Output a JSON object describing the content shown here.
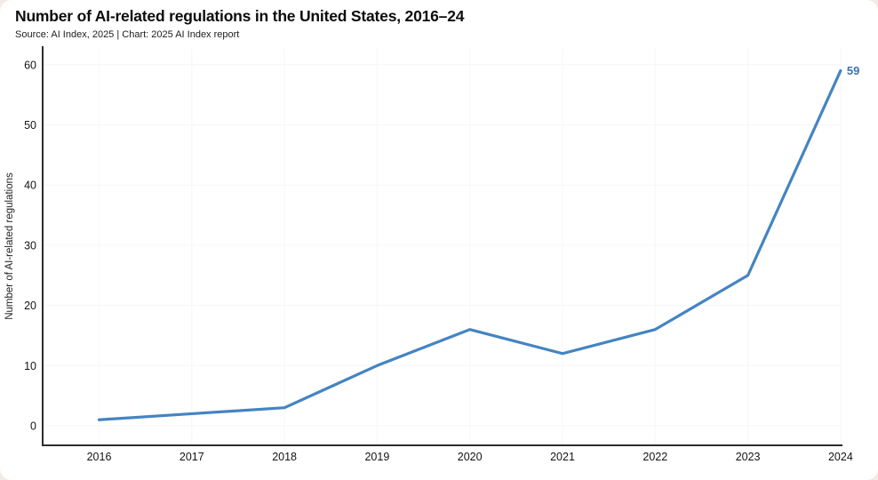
{
  "header": {
    "title": "Number of AI-related regulations in the United States, 2016–24",
    "source_line": "Source: AI Index, 2025 | Chart: 2025 AI Index report"
  },
  "chart_data": {
    "type": "line",
    "title": "Number of AI-related regulations in the United States, 2016–24",
    "categories": [
      "2016",
      "2017",
      "2018",
      "2019",
      "2020",
      "2021",
      "2022",
      "2023",
      "2024"
    ],
    "series": [
      {
        "name": "AI-related regulations",
        "values": [
          1,
          2,
          3,
          10,
          16,
          12,
          16,
          25,
          59
        ]
      }
    ],
    "xlabel": "",
    "ylabel": "Number of AI-related regulations",
    "yticks": [
      0,
      10,
      20,
      30,
      40,
      50,
      60
    ],
    "ylim": [
      0,
      60
    ],
    "end_point_label": "59",
    "grid": true,
    "legend": false,
    "colors": {
      "line": "#4484c2",
      "end_label": "#3d73ab",
      "axis": "#2d2d2d",
      "tick_text": "#141414",
      "grid_h": "#f6f6f6",
      "grid_v": "#f8f6f6"
    }
  }
}
